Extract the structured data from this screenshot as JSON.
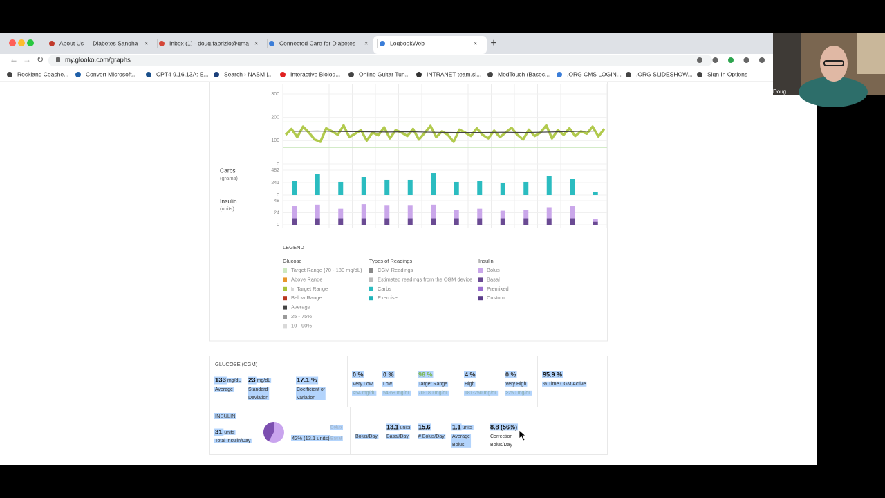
{
  "browser": {
    "tabs": [
      "About Us — Diabetes Sangha",
      "Inbox (1) - doug.fabrizio@gma",
      "Connected Care for Diabetes",
      "LogbookWeb"
    ],
    "url": "my.glooko.com/graphs",
    "bookmarks": [
      "Rockland Coache...",
      "Convert Microsoft...",
      "CPT4 9.16.13A: E...",
      "Search › NASM |...",
      "Interactive Biolog...",
      "Online Guitar Tun...",
      "INTRANET team.si...",
      "MedTouch (Basec...",
      ".ORG CMS LOGIN...",
      ".ORG SLIDESHOW...",
      "Sign In Options"
    ]
  },
  "webcam": {
    "name": "Doug"
  },
  "chart_data": [
    {
      "type": "line",
      "ylim": [
        0,
        300
      ],
      "yticks": [
        0,
        100,
        200,
        300
      ],
      "target_range": [
        70,
        180
      ],
      "series": [
        {
          "name": "In Target Range",
          "color": "#a9c43a",
          "values": [
            125,
            150,
            115,
            160,
            135,
            105,
            95,
            153,
            140,
            125,
            165,
            115,
            130,
            145,
            100,
            135,
            123,
            157,
            110,
            145,
            135,
            120,
            150,
            105,
            133,
            163,
            115,
            140,
            125,
            95,
            147,
            135,
            120,
            153,
            125,
            110,
            143,
            115,
            135,
            155,
            125,
            105,
            147,
            120,
            135,
            165,
            110,
            145,
            125,
            153,
            120,
            140,
            130,
            160,
            118,
            150
          ]
        },
        {
          "name": "Average",
          "color": "#444444",
          "values": [
            140,
            141,
            139,
            138,
            137,
            138,
            136,
            135,
            135,
            136,
            135,
            137,
            139,
            141
          ]
        }
      ]
    },
    {
      "type": "bar",
      "title": "Carbs",
      "subtitle": "(grams)",
      "ylim": [
        0,
        482
      ],
      "yticks": [
        0,
        241,
        482
      ],
      "color": "#2bbcc0",
      "values": [
        268,
        415,
        255,
        348,
        295,
        295,
        428,
        255,
        281,
        241,
        255,
        362,
        308,
        67
      ]
    },
    {
      "type": "stacked_bar",
      "title": "Insulin",
      "subtitle": "(units)",
      "ylim": [
        0,
        48
      ],
      "yticks": [
        0,
        24,
        48
      ],
      "series": [
        {
          "name": "Basal",
          "color": "#6a4a93",
          "values": [
            13,
            13,
            13,
            13,
            13,
            13,
            13,
            13,
            13,
            13,
            13,
            13,
            13,
            6
          ]
        },
        {
          "name": "Bolus",
          "color": "#caa7ea",
          "values": [
            24,
            27,
            19,
            28,
            25,
            25,
            27,
            17,
            19,
            15,
            17,
            22,
            24,
            5
          ]
        }
      ]
    }
  ],
  "legend": {
    "title": "LEGEND",
    "groups": [
      {
        "title": "Glucose",
        "items": [
          {
            "label": "Target Range (70 - 180 mg/dL)",
            "color": "#cde8c0"
          },
          {
            "label": "Above Range",
            "color": "#e8962a"
          },
          {
            "label": "In Target Range",
            "color": "#a9c43a"
          },
          {
            "label": "Below Range",
            "color": "#b8361e"
          },
          {
            "label": "Average",
            "color": "#444444"
          },
          {
            "label": "25 - 75%",
            "color": "#9a9a9a"
          },
          {
            "label": "10 - 90%",
            "color": "#d9d9d9"
          }
        ]
      },
      {
        "title": "Types of Readings",
        "items": [
          {
            "label": "CGM Readings",
            "color": "#888888"
          },
          {
            "label": "Estimated readings from the CGM device",
            "color": "#bbbbbb"
          },
          {
            "label": "Carbs",
            "color": "#2bbcc0"
          },
          {
            "label": "Exercise",
            "color": "#1fb3b8"
          }
        ]
      },
      {
        "title": "Insulin",
        "items": [
          {
            "label": "Bolus",
            "color": "#caa7ea"
          },
          {
            "label": "Basal",
            "color": "#6a4a93"
          },
          {
            "label": "Premixed",
            "color": "#9b6fd0"
          },
          {
            "label": "Custom",
            "color": "#5b3d8a"
          }
        ]
      }
    ]
  },
  "glucose_stats": {
    "title": "GLUCOSE (CGM)",
    "summary": [
      {
        "value": 133,
        "unit": "mg/dL",
        "label": "Average"
      },
      {
        "value": 23,
        "unit": "mg/dL",
        "label": "Standard Deviation"
      },
      {
        "value": "17.1 %",
        "label": "Coefficient of Variation"
      }
    ],
    "ranges": [
      {
        "value": "0 %",
        "label": "Very Low",
        "range": "<54 mg/dL"
      },
      {
        "value": "0 %",
        "label": "Low",
        "range": "54-69 mg/dL"
      },
      {
        "value": "96 %",
        "label": "Target Range",
        "range": "70-180 mg/dL"
      },
      {
        "value": "4 %",
        "label": "High",
        "range": "181-250 mg/dL"
      },
      {
        "value": "0 %",
        "label": "Very High",
        "range": ">250 mg/dL"
      }
    ],
    "active": {
      "value": "95.9 %",
      "label": "% Time CGM Active"
    }
  },
  "insulin_stats": {
    "title": "INSULIN",
    "total": {
      "value": 31,
      "unit": "units",
      "label": "Total Insulin/Day"
    },
    "pie_basal": 42,
    "bolus_label": "Bolus",
    "basal_text": "42% (13.1 units)",
    "basal_label": "Basal",
    "items": [
      {
        "label": "Bolus/Day"
      },
      {
        "value": "13.1",
        "unit": "units",
        "label": "Basal/Day"
      },
      {
        "value": "15.6",
        "label": "# Bolus/Day"
      },
      {
        "value": "1.1",
        "unit": "units",
        "label": "Average Bolus"
      },
      {
        "value": "8.8 (56%)",
        "label": "Correction Bolus/Day"
      }
    ]
  }
}
